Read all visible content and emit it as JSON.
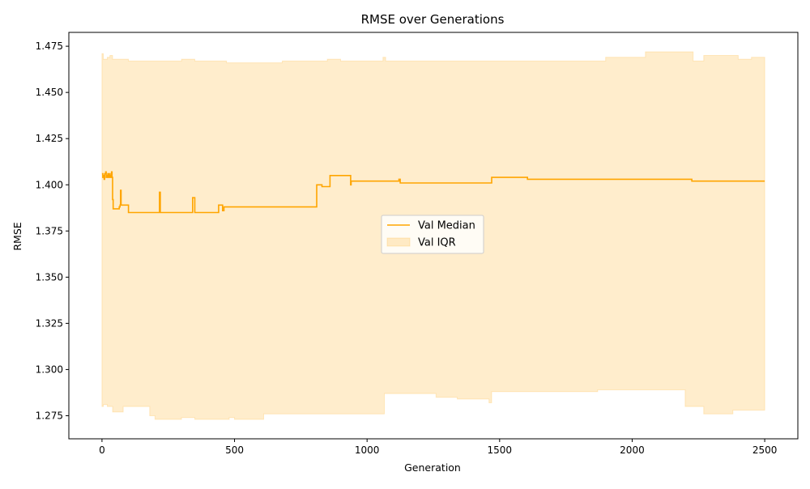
{
  "chart_data": {
    "type": "line",
    "title": "RMSE over Generations",
    "xlabel": "Generation",
    "ylabel": "RMSE",
    "xlim": [
      -125,
      2625
    ],
    "ylim": [
      1.2625,
      1.4825
    ],
    "x_ticks": [
      0,
      500,
      1000,
      1500,
      2000,
      2500
    ],
    "x_tick_labels": [
      "0",
      "500",
      "1000",
      "1500",
      "2000",
      "2500"
    ],
    "y_ticks": [
      1.275,
      1.3,
      1.325,
      1.35,
      1.375,
      1.4,
      1.425,
      1.45,
      1.475
    ],
    "y_tick_labels": [
      "1.275",
      "1.300",
      "1.325",
      "1.350",
      "1.375",
      "1.400",
      "1.425",
      "1.450",
      "1.475"
    ],
    "grid": false,
    "legend_position": "center",
    "legend": [
      {
        "label": "Val Median",
        "kind": "line"
      },
      {
        "label": "Val IQR",
        "kind": "patch"
      }
    ],
    "colors": {
      "median": "#ffa500",
      "iqr_fill": "#ffa500",
      "iqr_alpha": 0.2
    },
    "series": [
      {
        "name": "Val Median",
        "role": "median",
        "x": [
          0,
          3,
          5,
          8,
          10,
          12,
          14,
          16,
          18,
          20,
          22,
          24,
          26,
          28,
          30,
          32,
          34,
          36,
          38,
          40,
          42,
          44,
          50,
          60,
          65,
          68,
          70,
          72,
          75,
          80,
          100,
          150,
          200,
          215,
          217,
          220,
          300,
          340,
          342,
          345,
          350,
          400,
          430,
          440,
          450,
          455,
          460,
          500,
          530,
          540,
          600,
          610,
          650,
          660,
          670,
          700,
          710,
          800,
          810,
          815,
          830,
          840,
          850,
          860,
          870,
          900,
          935,
          938,
          940,
          1000,
          1100,
          1115,
          1120,
          1125,
          1200,
          1340,
          1345,
          1400,
          1465,
          1470,
          1500,
          1600,
          1605,
          1700,
          1780,
          1785,
          1900,
          2000,
          2100,
          2200,
          2220,
          2225,
          2250,
          2260,
          2300,
          2400,
          2500
        ],
        "values": [
          1.406,
          1.404,
          1.405,
          1.403,
          1.406,
          1.406,
          1.407,
          1.404,
          1.405,
          1.404,
          1.406,
          1.404,
          1.406,
          1.404,
          1.405,
          1.404,
          1.406,
          1.407,
          1.404,
          1.392,
          1.387,
          1.387,
          1.387,
          1.387,
          1.388,
          1.389,
          1.397,
          1.389,
          1.389,
          1.389,
          1.385,
          1.385,
          1.385,
          1.385,
          1.396,
          1.385,
          1.385,
          1.385,
          1.393,
          1.393,
          1.385,
          1.385,
          1.385,
          1.389,
          1.389,
          1.386,
          1.388,
          1.388,
          1.388,
          1.388,
          1.388,
          1.388,
          1.388,
          1.388,
          1.388,
          1.388,
          1.388,
          1.388,
          1.4,
          1.4,
          1.399,
          1.399,
          1.399,
          1.405,
          1.405,
          1.405,
          1.405,
          1.4,
          1.402,
          1.402,
          1.402,
          1.402,
          1.403,
          1.401,
          1.401,
          1.401,
          1.401,
          1.401,
          1.401,
          1.404,
          1.404,
          1.404,
          1.403,
          1.403,
          1.403,
          1.403,
          1.403,
          1.403,
          1.403,
          1.403,
          1.403,
          1.402,
          1.402,
          1.402,
          1.402,
          1.402,
          1.402
        ]
      },
      {
        "name": "Val IQR",
        "role": "iqr",
        "x": [
          0,
          5,
          10,
          20,
          30,
          40,
          50,
          60,
          80,
          100,
          120,
          150,
          180,
          200,
          220,
          250,
          300,
          320,
          350,
          400,
          420,
          450,
          470,
          480,
          500,
          550,
          600,
          610,
          650,
          680,
          700,
          750,
          800,
          850,
          900,
          950,
          1000,
          1050,
          1060,
          1065,
          1070,
          1100,
          1150,
          1200,
          1250,
          1260,
          1300,
          1340,
          1400,
          1460,
          1470,
          1500,
          1550,
          1600,
          1650,
          1700,
          1800,
          1870,
          1900,
          1950,
          2000,
          2050,
          2100,
          2150,
          2180,
          2200,
          2230,
          2250,
          2270,
          2300,
          2350,
          2380,
          2400,
          2450,
          2500
        ],
        "low": [
          1.28,
          1.281,
          1.281,
          1.28,
          1.28,
          1.277,
          1.277,
          1.277,
          1.28,
          1.28,
          1.28,
          1.28,
          1.275,
          1.273,
          1.273,
          1.273,
          1.274,
          1.274,
          1.273,
          1.273,
          1.273,
          1.273,
          1.273,
          1.274,
          1.273,
          1.273,
          1.273,
          1.276,
          1.276,
          1.276,
          1.276,
          1.276,
          1.276,
          1.276,
          1.276,
          1.276,
          1.276,
          1.276,
          1.276,
          1.287,
          1.287,
          1.287,
          1.287,
          1.287,
          1.287,
          1.285,
          1.285,
          1.284,
          1.284,
          1.282,
          1.288,
          1.288,
          1.288,
          1.288,
          1.288,
          1.288,
          1.288,
          1.289,
          1.289,
          1.289,
          1.289,
          1.289,
          1.289,
          1.289,
          1.289,
          1.28,
          1.28,
          1.28,
          1.276,
          1.276,
          1.276,
          1.278,
          1.278,
          1.278,
          1.278
        ],
        "high": [
          1.471,
          1.468,
          1.468,
          1.469,
          1.47,
          1.468,
          1.468,
          1.468,
          1.468,
          1.467,
          1.467,
          1.467,
          1.467,
          1.467,
          1.467,
          1.467,
          1.468,
          1.468,
          1.467,
          1.467,
          1.467,
          1.467,
          1.466,
          1.466,
          1.466,
          1.466,
          1.466,
          1.466,
          1.466,
          1.467,
          1.467,
          1.467,
          1.467,
          1.468,
          1.467,
          1.467,
          1.467,
          1.467,
          1.469,
          1.469,
          1.467,
          1.467,
          1.467,
          1.467,
          1.467,
          1.467,
          1.467,
          1.467,
          1.467,
          1.467,
          1.467,
          1.467,
          1.467,
          1.467,
          1.467,
          1.467,
          1.467,
          1.467,
          1.469,
          1.469,
          1.469,
          1.472,
          1.472,
          1.472,
          1.472,
          1.472,
          1.467,
          1.467,
          1.47,
          1.47,
          1.47,
          1.47,
          1.468,
          1.469,
          1.469
        ]
      }
    ]
  }
}
